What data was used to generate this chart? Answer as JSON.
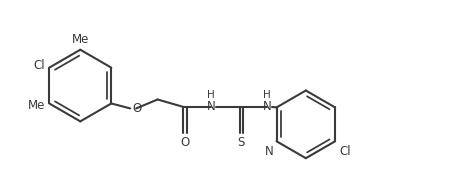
{
  "bg_color": "#ffffff",
  "line_color": "#3a3a3a",
  "line_width": 1.5,
  "font_size": 8.5,
  "figsize": [
    4.74,
    1.91
  ],
  "dpi": 100,
  "xlim": [
    0,
    9.5
  ],
  "ylim": [
    0,
    3.8
  ]
}
